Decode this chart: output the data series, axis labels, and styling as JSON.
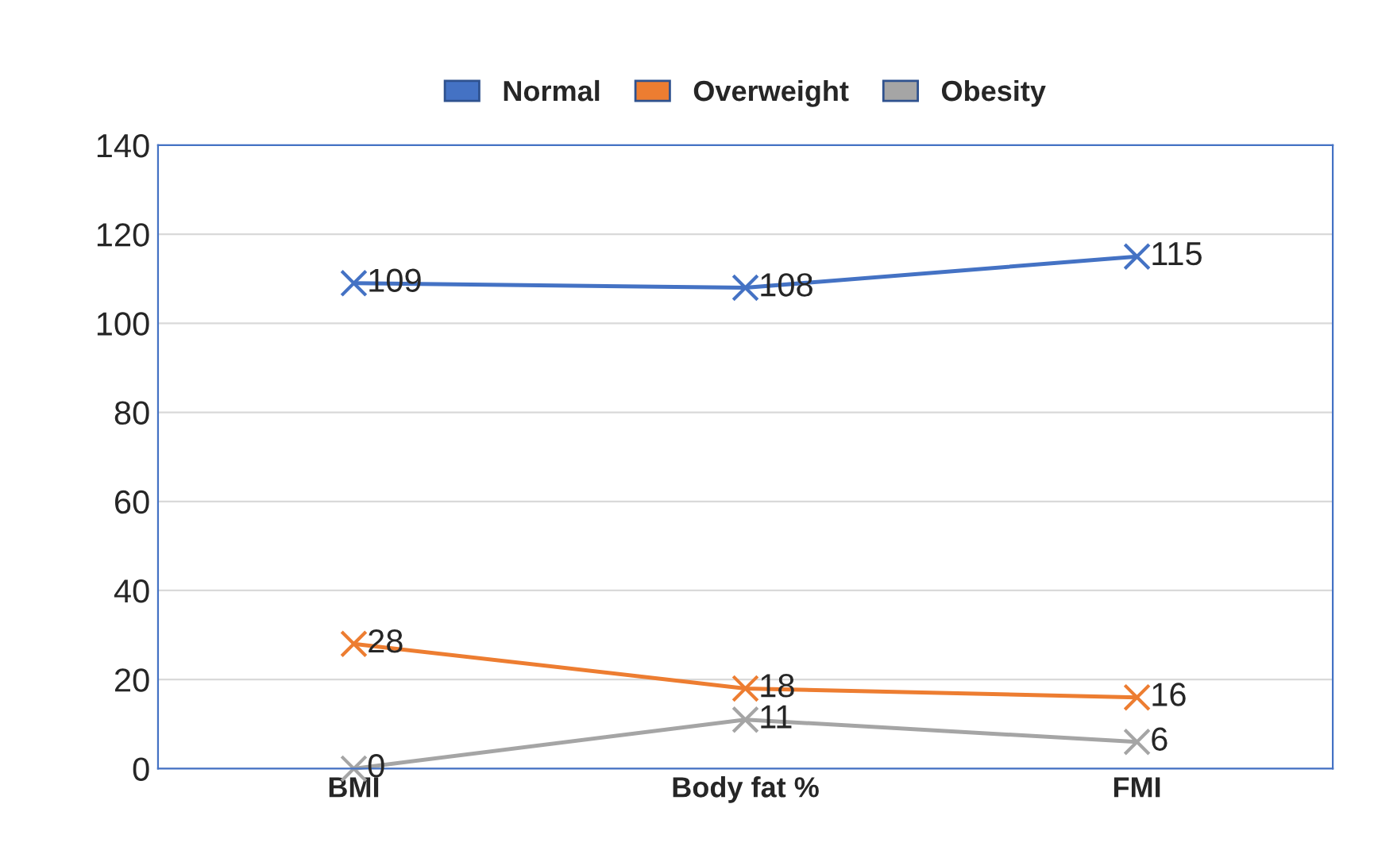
{
  "chart_data": {
    "type": "line",
    "categories": [
      "BMI",
      "Body fat %",
      "FMI"
    ],
    "series": [
      {
        "name": "Normal",
        "color": "#4472c4",
        "values": [
          109,
          108,
          115
        ]
      },
      {
        "name": "Overweight",
        "color": "#ed7d31",
        "values": [
          28,
          18,
          16
        ]
      },
      {
        "name": "Obesity",
        "color": "#a5a5a5",
        "values": [
          0,
          11,
          6
        ]
      }
    ],
    "ylim": [
      0,
      140
    ],
    "yticks": [
      0,
      20,
      40,
      60,
      80,
      100,
      120,
      140
    ],
    "grid": "y",
    "legend": "top",
    "marker": "cross",
    "data_labels": true
  }
}
